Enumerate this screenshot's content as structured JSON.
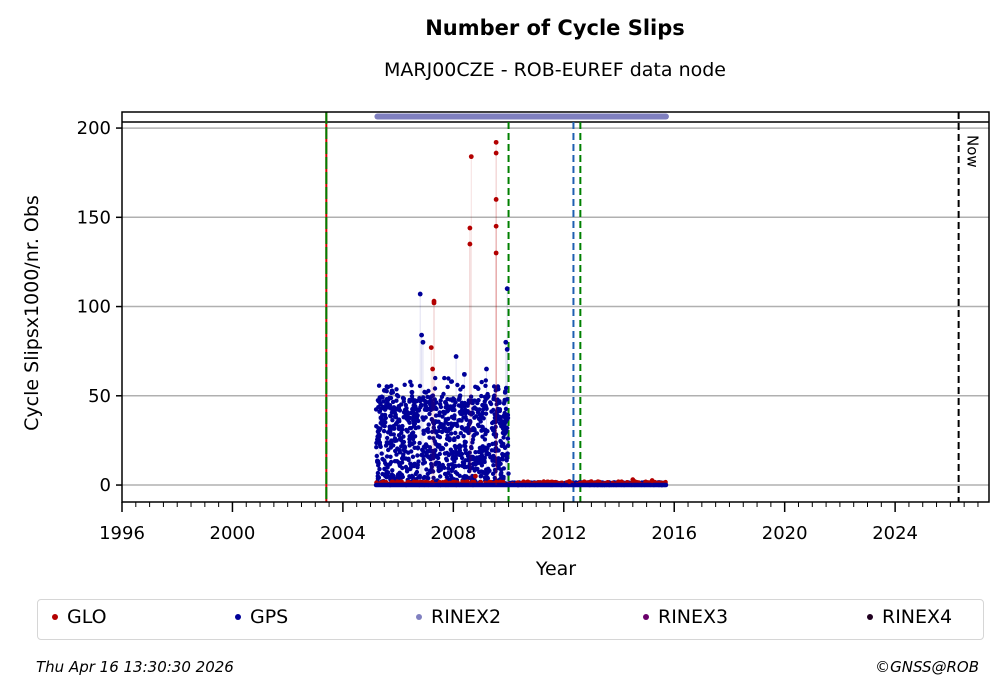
{
  "chart_data": {
    "type": "scatter",
    "title": "Number of Cycle Slips",
    "subtitle": "MARJ00CZE - ROB-EUREF data node",
    "xlabel": "Year",
    "ylabel": "Cycle Slipsx1000/nr. Obs",
    "xlim": [
      1996,
      2027.4
    ],
    "ylim": [
      -9.5,
      209
    ],
    "x_ticks": [
      1996,
      2000,
      2004,
      2008,
      2012,
      2016,
      2020,
      2024
    ],
    "y_ticks": [
      0,
      50,
      100,
      150,
      200
    ],
    "grid": "horizontal",
    "legend_position": "bottom",
    "series": [
      {
        "name": "GLO",
        "color": "#b30000",
        "points": [
          [
            2008.65,
            184
          ],
          [
            2008.6,
            144
          ],
          [
            2008.6,
            135
          ],
          [
            2009.55,
            192
          ],
          [
            2009.55,
            186
          ],
          [
            2009.55,
            160
          ],
          [
            2009.55,
            145
          ],
          [
            2009.55,
            130
          ],
          [
            2007.3,
            103
          ],
          [
            2007.3,
            102
          ],
          [
            2007.2,
            77
          ],
          [
            2007.25,
            65
          ],
          [
            2008.8,
            5
          ],
          [
            2012.2,
            2
          ],
          [
            2014.5,
            3
          ],
          [
            2015.2,
            2.5
          ]
        ]
      },
      {
        "name": "GPS",
        "color": "#000099",
        "points": [
          [
            2006.8,
            107
          ],
          [
            2009.95,
            110
          ],
          [
            2006.85,
            84
          ],
          [
            2006.9,
            80
          ],
          [
            2009.9,
            80
          ],
          [
            2009.95,
            76
          ],
          [
            2008.1,
            72
          ],
          [
            2008.4,
            62
          ],
          [
            2009.2,
            65
          ],
          [
            2005.5,
            53
          ],
          [
            2006.5,
            52
          ],
          [
            2005.3,
            47
          ]
        ]
      },
      {
        "name": "RINEX2",
        "color": "#8080c0",
        "range": [
          2005.25,
          2015.7
        ],
        "level": 206.5
      },
      {
        "name": "RINEX3",
        "color": "#6a006a"
      },
      {
        "name": "RINEX4",
        "color": "#200020"
      }
    ],
    "clusters": [
      {
        "series": "GPS",
        "x_range": [
          2005.2,
          2010.0
        ],
        "y_range": [
          0,
          50
        ],
        "count": 900
      },
      {
        "series": "GPS",
        "x_range": [
          2005.2,
          2010.0
        ],
        "y_range": [
          30,
          60
        ],
        "count": 150
      },
      {
        "series": "GPS",
        "x_range": [
          2010.0,
          2015.7
        ],
        "y_range": [
          0,
          1.5
        ],
        "count": 500
      },
      {
        "series": "GLO",
        "x_range": [
          2005.2,
          2010.0
        ],
        "y_range": [
          0,
          2
        ],
        "count": 120
      },
      {
        "series": "GLO",
        "x_range": [
          2010.0,
          2015.7
        ],
        "y_range": [
          0,
          2
        ],
        "count": 150
      }
    ],
    "reference_line": 203.4,
    "vertical_events": [
      {
        "x": 2003.4,
        "color": "#008000",
        "dash_color": "#d40000",
        "style": "dashed"
      },
      {
        "x": 2010.0,
        "color": "#008000",
        "style": "dashed"
      },
      {
        "x": 2012.35,
        "color": "#1f5fb0",
        "style": "dashed"
      },
      {
        "x": 2012.6,
        "color": "#008000",
        "style": "dashed"
      },
      {
        "x": 2026.3,
        "color": "#000000",
        "style": "dashed",
        "label": "Now"
      }
    ]
  },
  "legend": {
    "items": [
      {
        "label": "GLO",
        "color": "#b30000"
      },
      {
        "label": "GPS",
        "color": "#000099"
      },
      {
        "label": "RINEX2",
        "color": "#8080c0"
      },
      {
        "label": "RINEX3",
        "color": "#6a006a"
      },
      {
        "label": "RINEX4",
        "color": "#200020"
      }
    ]
  },
  "footer": {
    "timestamp": "Thu Apr 16 13:30:30 2026",
    "copyright": "©GNSS@ROB"
  }
}
